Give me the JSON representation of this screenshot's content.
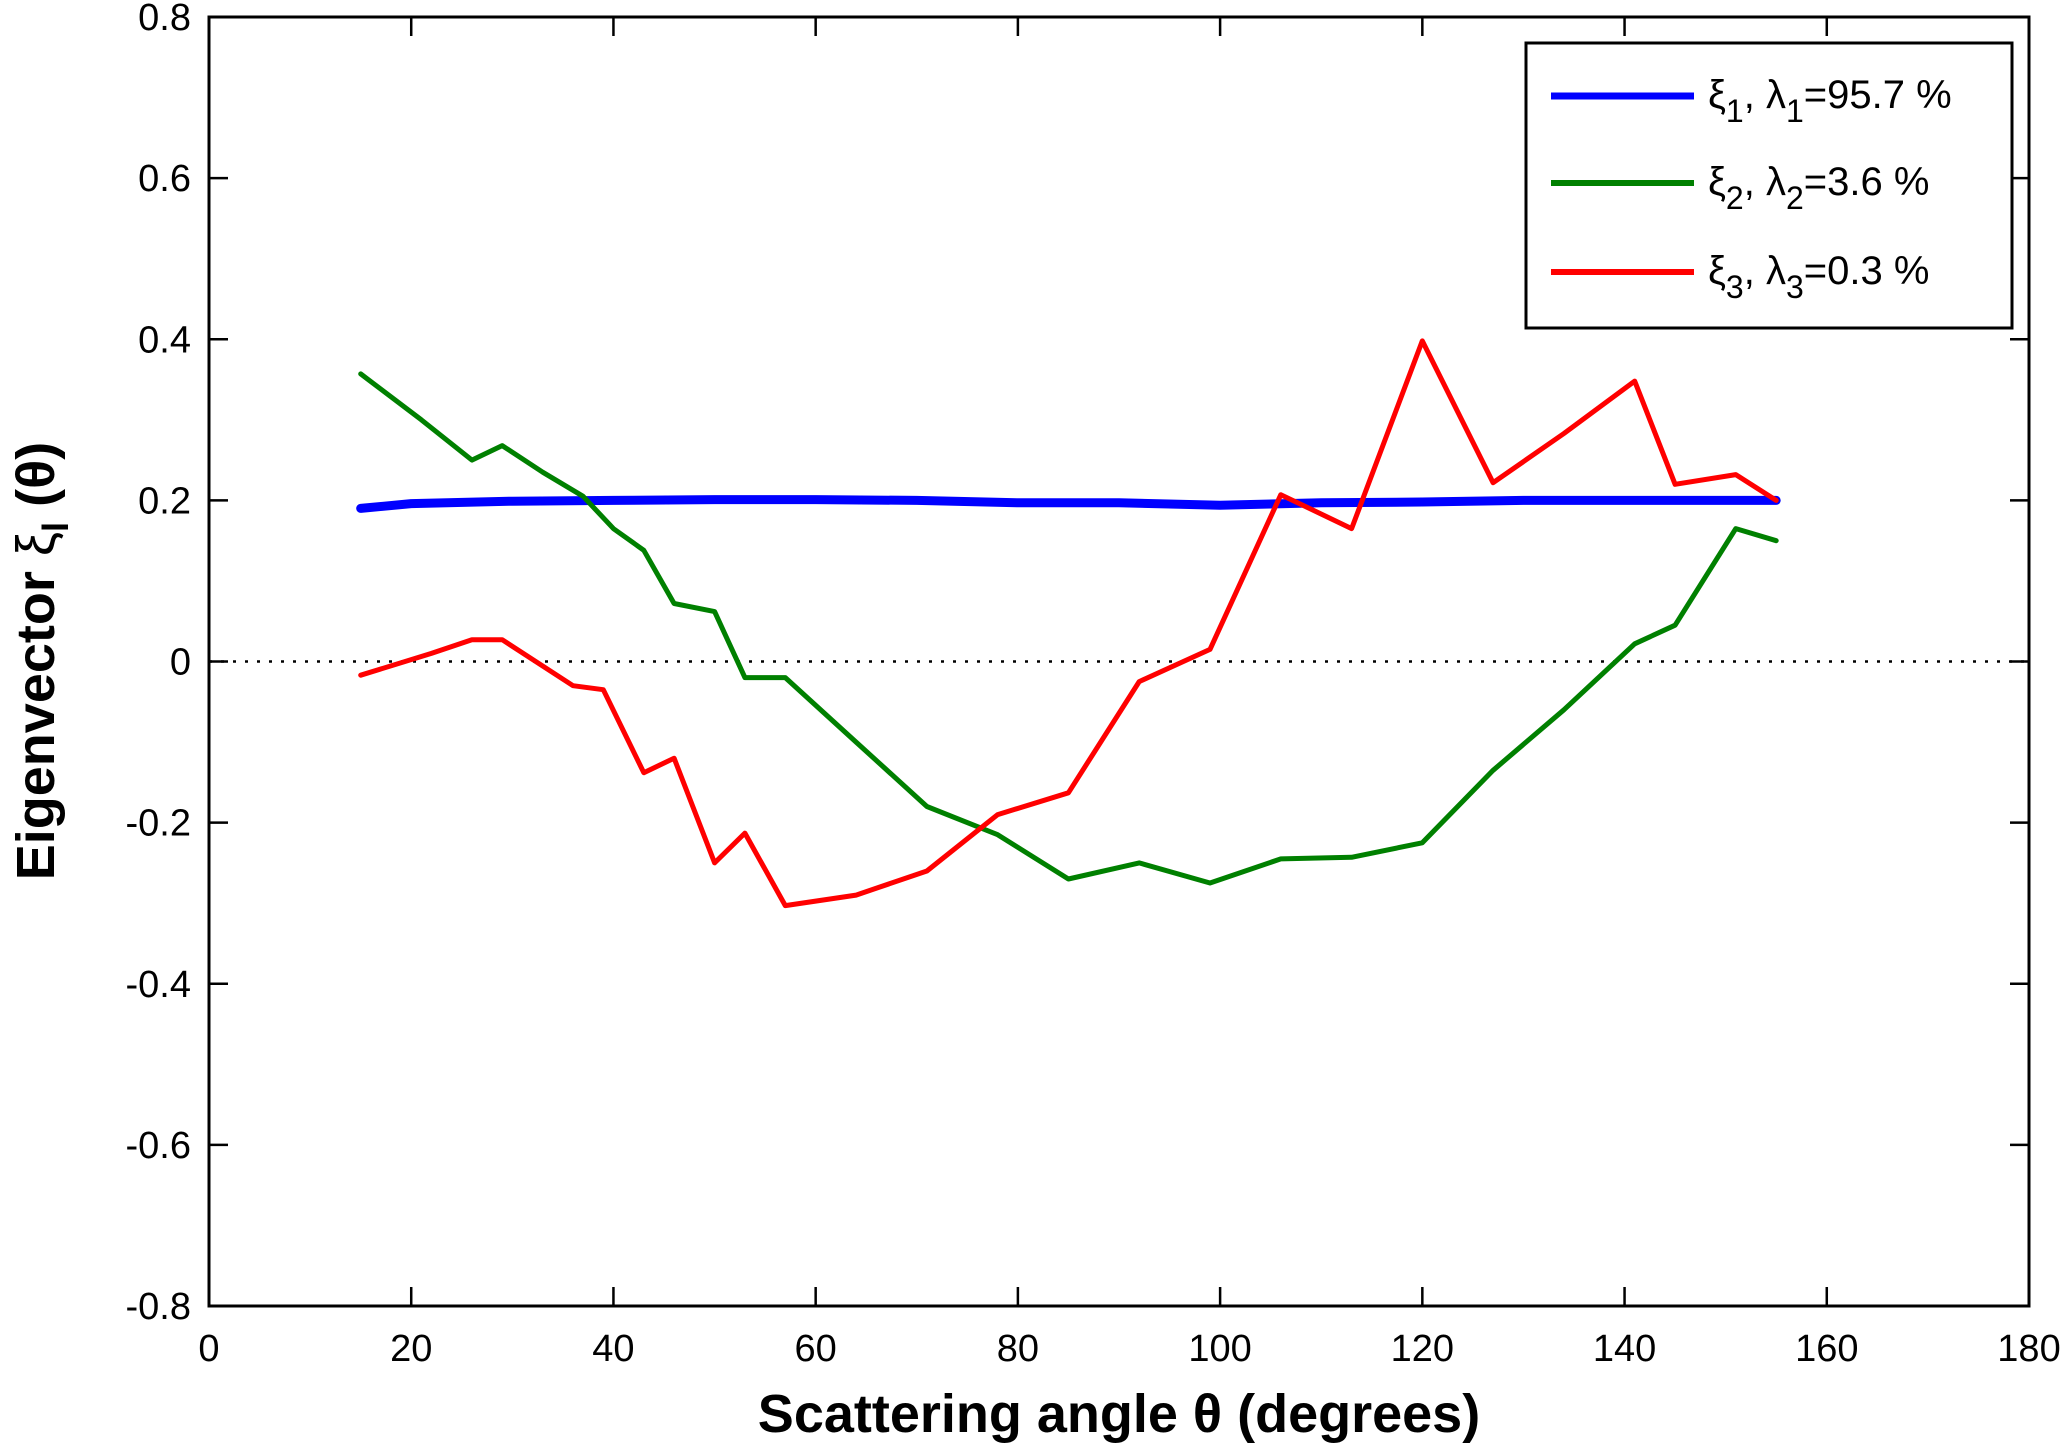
{
  "chart_data": {
    "type": "line",
    "xlabel": "Scattering angle θ (degrees)",
    "ylabel": "Eigenvector ξl (θ)",
    "ylabel_main": "Eigenvector ",
    "ylabel_symbol": "ξ",
    "ylabel_sub": "l",
    "ylabel_tail": " (θ)",
    "xlim": [
      0,
      180
    ],
    "ylim": [
      -0.8,
      0.8
    ],
    "xticks": [
      0,
      20,
      40,
      60,
      80,
      100,
      120,
      140,
      160,
      180
    ],
    "yticks": [
      -0.8,
      -0.6,
      -0.4,
      -0.2,
      0,
      0.2,
      0.4,
      0.6,
      0.8
    ],
    "xtick_labels": [
      "0",
      "20",
      "40",
      "60",
      "80",
      "100",
      "120",
      "140",
      "160",
      "180"
    ],
    "ytick_labels": [
      "-0.8",
      "-0.6",
      "-0.4",
      "-0.2",
      "0",
      "0.2",
      "0.4",
      "0.6",
      "0.8"
    ],
    "grid": false,
    "zero_line": "dotted",
    "legend_position": "top-right",
    "series": [
      {
        "name": "ξ1, λ1=95.7 %",
        "name_parts": {
          "sym": "ξ",
          "sub1": "1",
          "mid": ", λ",
          "sub2": "1",
          "tail": "=95.7 %"
        },
        "color": "#0000ff",
        "points": [
          [
            15,
            0.19
          ],
          [
            20,
            0.196
          ],
          [
            30,
            0.199
          ],
          [
            40,
            0.2
          ],
          [
            50,
            0.201
          ],
          [
            60,
            0.201
          ],
          [
            70,
            0.2
          ],
          [
            80,
            0.197
          ],
          [
            90,
            0.197
          ],
          [
            100,
            0.194
          ],
          [
            110,
            0.197
          ],
          [
            120,
            0.198
          ],
          [
            130,
            0.2
          ],
          [
            140,
            0.2
          ],
          [
            150,
            0.2
          ],
          [
            155,
            0.2
          ]
        ]
      },
      {
        "name": "ξ2, λ2=3.6 %",
        "name_parts": {
          "sym": "ξ",
          "sub1": "2",
          "mid": ", λ",
          "sub2": "2",
          "tail": "=3.6 %"
        },
        "color": "#008000",
        "points": [
          [
            15,
            0.357
          ],
          [
            21,
            0.3
          ],
          [
            26,
            0.25
          ],
          [
            29,
            0.268
          ],
          [
            33,
            0.235
          ],
          [
            37,
            0.205
          ],
          [
            40,
            0.165
          ],
          [
            43,
            0.138
          ],
          [
            46,
            0.072
          ],
          [
            50,
            0.062
          ],
          [
            53,
            -0.02
          ],
          [
            57,
            -0.02
          ],
          [
            64,
            -0.1
          ],
          [
            71,
            -0.18
          ],
          [
            78,
            -0.215
          ],
          [
            85,
            -0.27
          ],
          [
            92,
            -0.25
          ],
          [
            99,
            -0.275
          ],
          [
            106,
            -0.245
          ],
          [
            113,
            -0.243
          ],
          [
            120,
            -0.225
          ],
          [
            127,
            -0.135
          ],
          [
            134,
            -0.06
          ],
          [
            141,
            0.022
          ],
          [
            145,
            0.045
          ],
          [
            151,
            0.165
          ],
          [
            155,
            0.15
          ]
        ]
      },
      {
        "name": "ξ3, λ3=0.3 %",
        "name_parts": {
          "sym": "ξ",
          "sub1": "3",
          "mid": ", λ",
          "sub2": "3",
          "tail": "=0.3 %"
        },
        "color": "#ff0000",
        "points": [
          [
            15,
            -0.017
          ],
          [
            22,
            0.01
          ],
          [
            26,
            0.027
          ],
          [
            29,
            0.027
          ],
          [
            36,
            -0.03
          ],
          [
            39,
            -0.035
          ],
          [
            43,
            -0.138
          ],
          [
            46,
            -0.12
          ],
          [
            50,
            -0.25
          ],
          [
            53,
            -0.213
          ],
          [
            57,
            -0.303
          ],
          [
            64,
            -0.29
          ],
          [
            71,
            -0.26
          ],
          [
            78,
            -0.19
          ],
          [
            85,
            -0.163
          ],
          [
            92,
            -0.025
          ],
          [
            99,
            0.015
          ],
          [
            106,
            0.207
          ],
          [
            113,
            0.165
          ],
          [
            120,
            0.398
          ],
          [
            127,
            0.222
          ],
          [
            134,
            0.283
          ],
          [
            141,
            0.348
          ],
          [
            145,
            0.22
          ],
          [
            151,
            0.232
          ],
          [
            155,
            0.2
          ]
        ]
      }
    ]
  }
}
